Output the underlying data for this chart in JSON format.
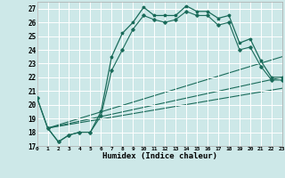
{
  "xlabel": "Humidex (Indice chaleur)",
  "xlim": [
    0,
    23
  ],
  "ylim": [
    17,
    27.5
  ],
  "yticks": [
    17,
    18,
    19,
    20,
    21,
    22,
    23,
    24,
    25,
    26,
    27
  ],
  "xticks": [
    0,
    1,
    2,
    3,
    4,
    5,
    6,
    7,
    8,
    9,
    10,
    11,
    12,
    13,
    14,
    15,
    16,
    17,
    18,
    19,
    20,
    21,
    22,
    23
  ],
  "background_color": "#cde8e8",
  "grid_color": "#b0d8d8",
  "line_color": "#1a6b5a",
  "line1": {
    "x": [
      0,
      1,
      2,
      3,
      4,
      5,
      6,
      7,
      8,
      9,
      10,
      11,
      12,
      13,
      14,
      15,
      16,
      17,
      18,
      19,
      20,
      21,
      22,
      23
    ],
    "y": [
      20.5,
      18.3,
      17.3,
      17.8,
      18.0,
      18.0,
      19.5,
      23.5,
      25.2,
      26.0,
      27.1,
      26.5,
      26.5,
      26.5,
      27.2,
      26.8,
      26.8,
      26.3,
      26.5,
      24.5,
      24.8,
      23.2,
      22.0,
      22.0
    ]
  },
  "line2": {
    "x": [
      0,
      1,
      2,
      3,
      4,
      5,
      6,
      7,
      8,
      9,
      10,
      11,
      12,
      13,
      14,
      15,
      16,
      17,
      18,
      19,
      20,
      21,
      22,
      23
    ],
    "y": [
      20.5,
      18.3,
      17.3,
      17.8,
      18.0,
      18.0,
      19.2,
      22.5,
      24.0,
      25.5,
      26.5,
      26.2,
      26.0,
      26.2,
      26.8,
      26.5,
      26.5,
      25.8,
      26.0,
      24.0,
      24.2,
      22.8,
      21.8,
      21.8
    ]
  },
  "diag_lines": [
    {
      "x": [
        1,
        23
      ],
      "y": [
        18.3,
        22.0
      ]
    },
    {
      "x": [
        1,
        23
      ],
      "y": [
        18.3,
        23.5
      ]
    },
    {
      "x": [
        1,
        23
      ],
      "y": [
        18.3,
        21.2
      ]
    }
  ]
}
